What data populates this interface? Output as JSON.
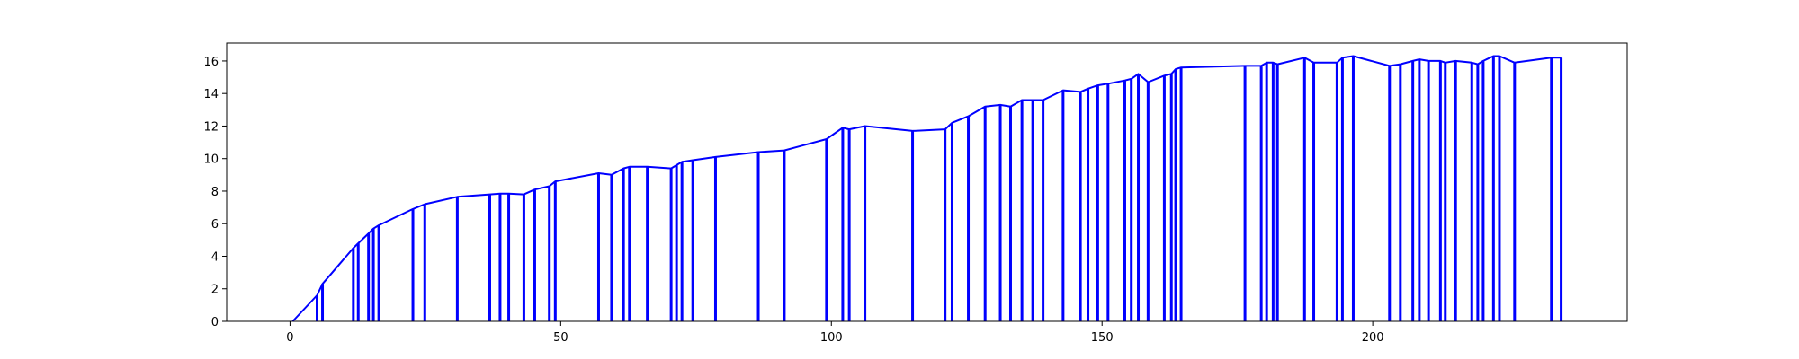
{
  "chart_data": {
    "type": "line",
    "title": "",
    "xlabel": "",
    "ylabel": "",
    "xlim": [
      -11.7,
      247
    ],
    "ylim": [
      0,
      17.1
    ],
    "x_ticks": [
      0,
      50,
      100,
      150,
      200
    ],
    "y_ticks": [
      0,
      2,
      4,
      6,
      8,
      10,
      12,
      14,
      16
    ],
    "grid": false,
    "legend": "none",
    "line_color": "#0000ff",
    "series": [
      {
        "style": "drop-lines-to-zero",
        "points": [
          [
            0.5,
            0.0
          ],
          [
            5.0,
            1.6
          ],
          [
            6.0,
            2.3
          ],
          [
            11.7,
            4.5
          ],
          [
            12.6,
            4.8
          ],
          [
            14.5,
            5.4
          ],
          [
            15.4,
            5.7
          ],
          [
            16.4,
            5.9
          ],
          [
            22.7,
            6.9
          ],
          [
            24.9,
            7.2
          ],
          [
            30.9,
            7.65
          ],
          [
            36.9,
            7.8
          ],
          [
            38.8,
            7.85
          ],
          [
            40.4,
            7.85
          ],
          [
            43.2,
            7.8
          ],
          [
            45.2,
            8.1
          ],
          [
            47.9,
            8.3
          ],
          [
            49.0,
            8.6
          ],
          [
            57.0,
            9.1
          ],
          [
            59.4,
            9.0
          ],
          [
            61.6,
            9.4
          ],
          [
            62.7,
            9.5
          ],
          [
            66.0,
            9.5
          ],
          [
            70.4,
            9.4
          ],
          [
            71.4,
            9.6
          ],
          [
            72.4,
            9.8
          ],
          [
            74.4,
            9.9
          ],
          [
            78.6,
            10.1
          ],
          [
            86.5,
            10.4
          ],
          [
            91.3,
            10.5
          ],
          [
            99.1,
            11.2
          ],
          [
            102.1,
            11.9
          ],
          [
            103.3,
            11.8
          ],
          [
            106.2,
            12.0
          ],
          [
            115.0,
            11.7
          ],
          [
            121.0,
            11.8
          ],
          [
            122.3,
            12.2
          ],
          [
            125.3,
            12.6
          ],
          [
            128.4,
            13.2
          ],
          [
            131.2,
            13.3
          ],
          [
            133.1,
            13.2
          ],
          [
            135.2,
            13.6
          ],
          [
            137.2,
            13.6
          ],
          [
            139.1,
            13.6
          ],
          [
            142.8,
            14.2
          ],
          [
            146.0,
            14.1
          ],
          [
            147.4,
            14.3
          ],
          [
            149.2,
            14.5
          ],
          [
            151.1,
            14.6
          ],
          [
            154.2,
            14.8
          ],
          [
            155.4,
            14.9
          ],
          [
            156.7,
            15.2
          ],
          [
            158.5,
            14.7
          ],
          [
            161.5,
            15.1
          ],
          [
            162.8,
            15.2
          ],
          [
            163.6,
            15.5
          ],
          [
            164.6,
            15.6
          ],
          [
            176.4,
            15.7
          ],
          [
            179.4,
            15.7
          ],
          [
            180.4,
            15.9
          ],
          [
            181.6,
            15.9
          ],
          [
            182.4,
            15.8
          ],
          [
            187.4,
            16.2
          ],
          [
            189.1,
            15.9
          ],
          [
            193.4,
            15.9
          ],
          [
            194.4,
            16.2
          ],
          [
            196.4,
            16.3
          ],
          [
            203.1,
            15.7
          ],
          [
            205.1,
            15.8
          ],
          [
            207.4,
            16.0
          ],
          [
            208.6,
            16.1
          ],
          [
            210.3,
            16.0
          ],
          [
            212.5,
            16.0
          ],
          [
            213.4,
            15.9
          ],
          [
            215.3,
            16.0
          ],
          [
            218.3,
            15.9
          ],
          [
            219.4,
            15.8
          ],
          [
            220.4,
            16.0
          ],
          [
            222.3,
            16.3
          ],
          [
            223.4,
            16.3
          ],
          [
            226.2,
            15.9
          ],
          [
            233.0,
            16.2
          ],
          [
            234.8,
            16.2
          ]
        ]
      }
    ]
  }
}
